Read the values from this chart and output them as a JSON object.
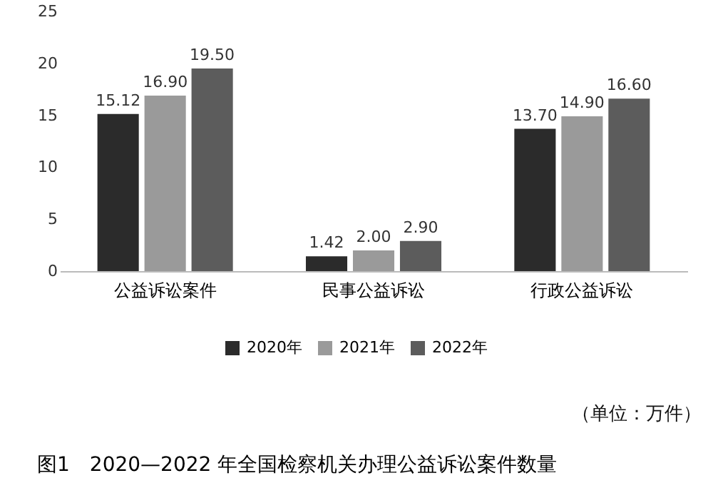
{
  "chart_data": {
    "type": "bar",
    "title": "图1　2020—2022 年全国检察机关办理公益诉讼案件数量",
    "categories": [
      "公益诉讼案件",
      "民事公益诉讼",
      "行政公益诉讼"
    ],
    "series": [
      {
        "name": "2020年",
        "color": "#2b2b2b",
        "values": [
          15.12,
          1.42,
          13.7
        ],
        "value_labels": [
          "15.12",
          "1.42",
          "13.70"
        ]
      },
      {
        "name": "2021年",
        "color": "#9a9a9a",
        "values": [
          16.9,
          2.0,
          14.9
        ],
        "value_labels": [
          "16.90",
          "2.00",
          "14.90"
        ]
      },
      {
        "name": "2022年",
        "color": "#5c5c5c",
        "values": [
          19.5,
          2.9,
          16.6
        ],
        "value_labels": [
          "19.50",
          "2.90",
          "16.60"
        ]
      }
    ],
    "ylim": [
      0,
      25
    ],
    "yticks": [
      0,
      5,
      10,
      15,
      20,
      25
    ],
    "grid": false,
    "legend": "bottom",
    "annotations": [
      "（单位：万件）"
    ]
  }
}
